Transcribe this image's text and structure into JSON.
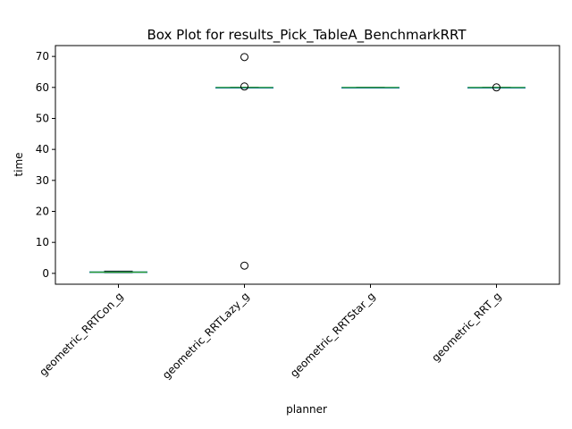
{
  "chart_data": {
    "type": "box",
    "title": "Box Plot for results_Pick_TableA_BenchmarkRRT",
    "xlabel": "planner",
    "ylabel": "time",
    "ylim": [
      -3.5,
      73.5
    ],
    "yticks": [
      0,
      10,
      20,
      30,
      40,
      50,
      60,
      70
    ],
    "grid": false,
    "categories": [
      "geometric_RRTCon_g",
      "geometric_RRTLazy_g",
      "geometric_RRTStar_g",
      "geometric_RRT_g"
    ],
    "boxes": [
      {
        "category": "geometric_RRTCon_g",
        "whisker_low": 0.2,
        "q1": 0.3,
        "median": 0.4,
        "q3": 0.5,
        "whisker_high": 0.7,
        "fliers": []
      },
      {
        "category": "geometric_RRTLazy_g",
        "whisker_low": 60.0,
        "q1": 60.0,
        "median": 60.0,
        "q3": 60.0,
        "whisker_high": 60.0,
        "fliers": [
          69.8,
          60.3,
          2.5
        ]
      },
      {
        "category": "geometric_RRTStar_g",
        "whisker_low": 60.0,
        "q1": 60.0,
        "median": 60.0,
        "q3": 60.0,
        "whisker_high": 60.0,
        "fliers": []
      },
      {
        "category": "geometric_RRT_g",
        "whisker_low": 60.0,
        "q1": 60.0,
        "median": 60.0,
        "q3": 60.0,
        "whisker_high": 60.0,
        "fliers": [
          60.0
        ]
      }
    ],
    "colors": {
      "box": "#1f77b4",
      "median": "#2ca02c",
      "whisker": "#1f77b4",
      "flier": "#000000"
    }
  }
}
